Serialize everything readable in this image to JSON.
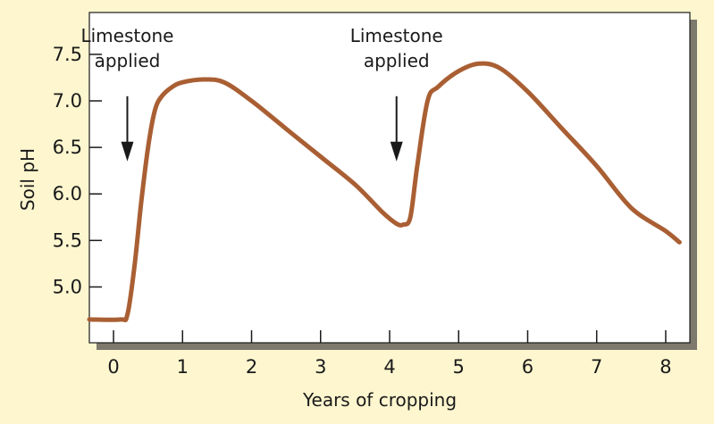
{
  "chart_data": {
    "type": "line",
    "xlabel": "Years of cropping",
    "ylabel": "Soil pH",
    "xlim": [
      -0.35,
      8.35
    ],
    "ylim": [
      4.4,
      7.95
    ],
    "x_ticks": [
      0,
      1,
      2,
      3,
      4,
      5,
      6,
      7,
      8
    ],
    "x_tick_labels": [
      "0",
      "1",
      "2",
      "3",
      "4",
      "5",
      "6",
      "7",
      "8"
    ],
    "y_ticks": [
      5.0,
      5.5,
      6.0,
      6.5,
      7.0,
      7.5
    ],
    "y_tick_labels": [
      "5.0",
      "5.5",
      "6.0",
      "6.5",
      "7.0",
      "7.5"
    ],
    "grid": false,
    "series": [
      {
        "x": [
          -0.35,
          0.1,
          0.2,
          0.3,
          0.4,
          0.5,
          0.6,
          0.7,
          0.85,
          1.0,
          1.3,
          1.6,
          2.0,
          2.5,
          3.0,
          3.5,
          3.9,
          4.1,
          4.2,
          4.3,
          4.4,
          4.55,
          4.7,
          5.0,
          5.3,
          5.6,
          6.0,
          6.5,
          7.0,
          7.5,
          8.0,
          8.2
        ],
        "values": [
          4.65,
          4.65,
          4.7,
          5.2,
          5.9,
          6.5,
          6.9,
          7.05,
          7.15,
          7.2,
          7.23,
          7.2,
          7.0,
          6.7,
          6.4,
          6.1,
          5.8,
          5.68,
          5.67,
          5.75,
          6.3,
          7.0,
          7.15,
          7.32,
          7.4,
          7.35,
          7.1,
          6.7,
          6.3,
          5.85,
          5.6,
          5.48
        ]
      }
    ],
    "annotations": [
      {
        "lines": [
          "Limestone",
          "applied"
        ],
        "x": 0.2,
        "arrow_top": 7.05,
        "arrow_bottom": 6.35
      },
      {
        "lines": [
          "Limestone",
          "applied"
        ],
        "x": 4.1,
        "arrow_top": 7.05,
        "arrow_bottom": 6.35
      }
    ]
  },
  "colors": {
    "background": "#fdf6cf",
    "plot_area": "#ffffff",
    "line": "#a95f33",
    "axis": "#1a1a1a",
    "shadow": "#7d7a6d"
  }
}
